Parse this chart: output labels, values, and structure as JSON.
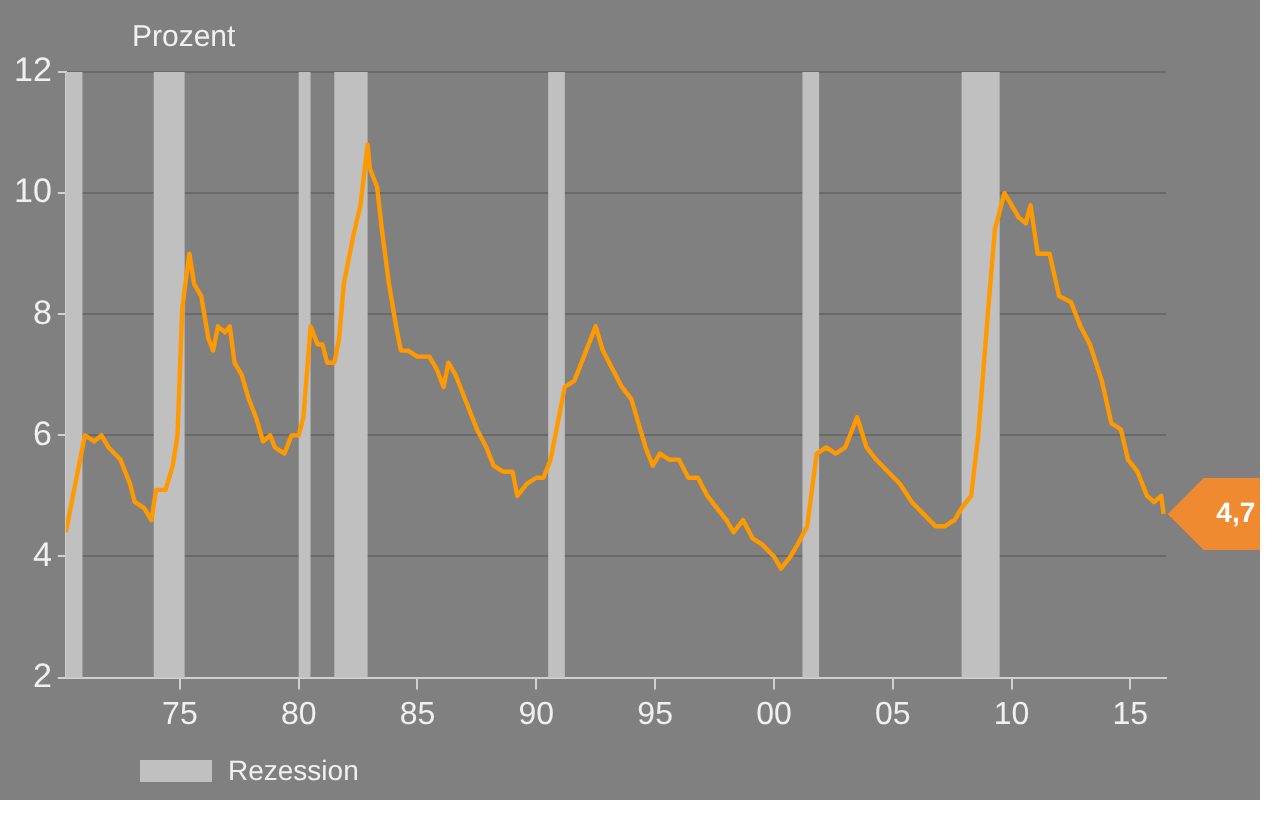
{
  "chart_data": {
    "type": "line",
    "ylabel": "Prozent",
    "xlim": [
      1970.2,
      2016.5
    ],
    "ylim": [
      2,
      12
    ],
    "yticks": [
      2,
      4,
      6,
      8,
      10,
      12
    ],
    "xticks": [
      {
        "value": 1975,
        "label": "75"
      },
      {
        "value": 1980,
        "label": "80"
      },
      {
        "value": 1985,
        "label": "85"
      },
      {
        "value": 1990,
        "label": "90"
      },
      {
        "value": 1995,
        "label": "95"
      },
      {
        "value": 2000,
        "label": "00"
      },
      {
        "value": 2005,
        "label": "05"
      },
      {
        "value": 2010,
        "label": "10"
      },
      {
        "value": 2015,
        "label": "15"
      }
    ],
    "grid": "y",
    "legend": "bottom left",
    "marker": "none",
    "line_style": "solid",
    "x": [
      1970.2,
      1970.5,
      1970.9,
      1971.0,
      1971.4,
      1971.7,
      1972.0,
      1972.5,
      1972.9,
      1973.1,
      1973.5,
      1973.8,
      1974.0,
      1974.4,
      1974.7,
      1974.9,
      1975.1,
      1975.4,
      1975.6,
      1975.9,
      1976.2,
      1976.4,
      1976.6,
      1976.9,
      1977.1,
      1977.3,
      1977.6,
      1977.9,
      1978.2,
      1978.5,
      1978.8,
      1979.0,
      1979.4,
      1979.7,
      1980.0,
      1980.2,
      1980.5,
      1980.8,
      1981.0,
      1981.2,
      1981.5,
      1981.7,
      1981.9,
      1982.3,
      1982.6,
      1982.9,
      1983.0,
      1983.3,
      1983.5,
      1983.8,
      1984.1,
      1984.3,
      1984.6,
      1985.0,
      1985.5,
      1985.8,
      1986.1,
      1986.3,
      1986.6,
      1987.0,
      1987.5,
      1987.9,
      1988.2,
      1988.6,
      1989.0,
      1989.2,
      1989.6,
      1990.0,
      1990.3,
      1990.6,
      1990.9,
      1991.2,
      1991.6,
      1992.0,
      1992.5,
      1992.8,
      1993.2,
      1993.6,
      1994.0,
      1994.3,
      1994.6,
      1994.9,
      1995.2,
      1995.6,
      1996.0,
      1996.4,
      1996.8,
      1997.2,
      1997.6,
      1998.0,
      1998.3,
      1998.7,
      1999.1,
      1999.5,
      2000.0,
      2000.3,
      2000.7,
      2001.0,
      2001.4,
      2001.8,
      2002.2,
      2002.6,
      2003.0,
      2003.5,
      2003.9,
      2004.3,
      2004.8,
      2005.3,
      2005.8,
      2006.3,
      2006.8,
      2007.2,
      2007.6,
      2007.9,
      2008.3,
      2008.6,
      2009.0,
      2009.3,
      2009.7,
      2010.0,
      2010.3,
      2010.6,
      2010.8,
      2011.1,
      2011.6,
      2012.0,
      2012.5,
      2012.9,
      2013.3,
      2013.8,
      2014.2,
      2014.6,
      2014.9,
      2015.3,
      2015.7,
      2016.0,
      2016.3,
      2016.4
    ],
    "series": [
      {
        "color": "#ff9900",
        "values": [
          4.4,
          5.0,
          5.8,
          6.0,
          5.9,
          6.0,
          5.8,
          5.6,
          5.2,
          4.9,
          4.8,
          4.6,
          5.1,
          5.1,
          5.5,
          6.0,
          8.1,
          9.0,
          8.5,
          8.3,
          7.6,
          7.4,
          7.8,
          7.7,
          7.8,
          7.2,
          7.0,
          6.6,
          6.3,
          5.9,
          6.0,
          5.8,
          5.7,
          6.0,
          6.0,
          6.3,
          7.8,
          7.5,
          7.5,
          7.2,
          7.2,
          7.6,
          8.5,
          9.3,
          9.8,
          10.8,
          10.4,
          10.1,
          9.4,
          8.5,
          7.8,
          7.4,
          7.4,
          7.3,
          7.3,
          7.1,
          6.8,
          7.2,
          7.0,
          6.6,
          6.1,
          5.8,
          5.5,
          5.4,
          5.4,
          5.0,
          5.2,
          5.3,
          5.3,
          5.6,
          6.2,
          6.8,
          6.9,
          7.3,
          7.8,
          7.4,
          7.1,
          6.8,
          6.6,
          6.2,
          5.8,
          5.5,
          5.7,
          5.6,
          5.6,
          5.3,
          5.3,
          5.0,
          4.8,
          4.6,
          4.4,
          4.6,
          4.3,
          4.2,
          4.0,
          3.8,
          4.0,
          4.2,
          4.5,
          5.7,
          5.8,
          5.7,
          5.8,
          6.3,
          5.8,
          5.6,
          5.4,
          5.2,
          4.9,
          4.7,
          4.5,
          4.5,
          4.6,
          4.8,
          5.0,
          6.0,
          8.0,
          9.4,
          10.0,
          9.8,
          9.6,
          9.5,
          9.8,
          9.0,
          9.0,
          8.3,
          8.2,
          7.8,
          7.5,
          6.9,
          6.2,
          6.1,
          5.6,
          5.4,
          5.0,
          4.9,
          5.0,
          4.7
        ]
      }
    ],
    "bands": [
      {
        "axis": "x",
        "from": 1970.2,
        "to": 1970.9,
        "color": "#c0c0c0",
        "label": "Rezession"
      },
      {
        "axis": "x",
        "from": 1973.9,
        "to": 1975.2,
        "color": "#c0c0c0"
      },
      {
        "axis": "x",
        "from": 1980.0,
        "to": 1980.5,
        "color": "#c0c0c0"
      },
      {
        "axis": "x",
        "from": 1981.5,
        "to": 1982.9,
        "color": "#c0c0c0"
      },
      {
        "axis": "x",
        "from": 1990.5,
        "to": 1991.2,
        "color": "#c0c0c0"
      },
      {
        "axis": "x",
        "from": 2001.2,
        "to": 2001.9,
        "color": "#c0c0c0"
      },
      {
        "axis": "x",
        "from": 2007.9,
        "to": 2009.5,
        "color": "#c0c0c0"
      }
    ],
    "annotations": [
      {
        "text": "4,7",
        "x": 2016.4,
        "y": 4.7
      }
    ]
  }
}
